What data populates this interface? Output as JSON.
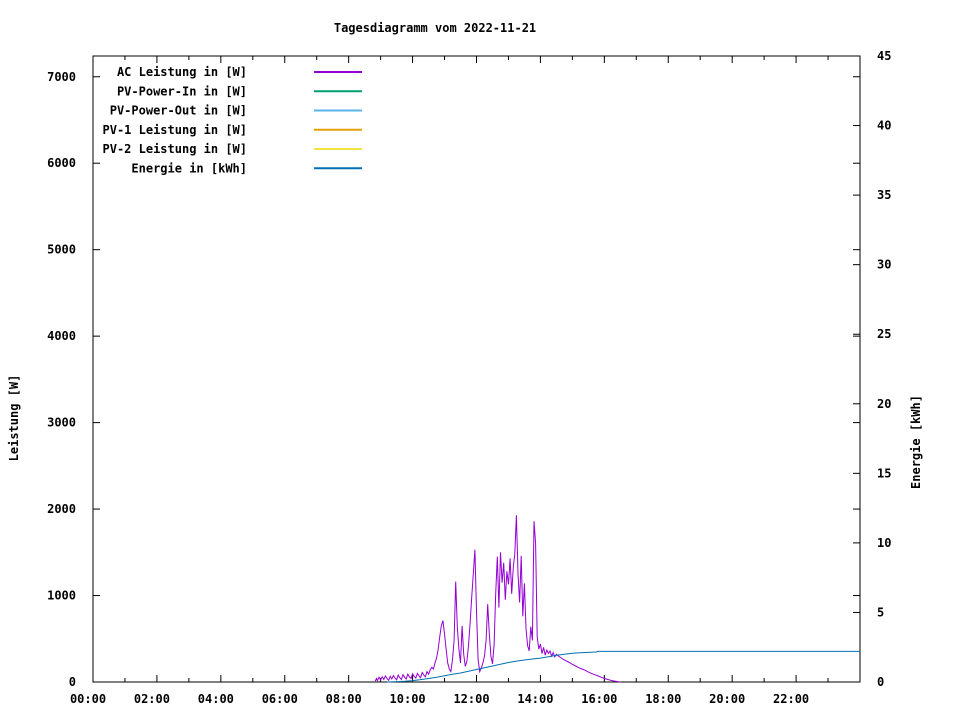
{
  "chart_data": {
    "type": "line",
    "title": "Tagesdiagramm vom 2022-11-21",
    "background": "#ffffff",
    "axis_color": "#000000",
    "legend_position": "top-left",
    "grid": false,
    "x": {
      "range_hours": [
        0,
        24
      ],
      "major_ticks": [
        {
          "h": 0,
          "label": "00:00"
        },
        {
          "h": 2,
          "label": "02:00"
        },
        {
          "h": 4,
          "label": "04:00"
        },
        {
          "h": 6,
          "label": "06:00"
        },
        {
          "h": 8,
          "label": "08:00"
        },
        {
          "h": 10,
          "label": "10:00"
        },
        {
          "h": 12,
          "label": "12:00"
        },
        {
          "h": 14,
          "label": "14:00"
        },
        {
          "h": 16,
          "label": "16:00"
        },
        {
          "h": 18,
          "label": "18:00"
        },
        {
          "h": 20,
          "label": "20:00"
        },
        {
          "h": 22,
          "label": "22:00"
        }
      ],
      "minor_tick_hours": [
        1,
        3,
        5,
        7,
        9,
        11,
        13,
        15,
        17,
        19,
        21,
        23
      ]
    },
    "y_left": {
      "label": "Leistung [W]",
      "max": 7240,
      "ticks": [
        {
          "v": 0,
          "label": "0"
        },
        {
          "v": 1000,
          "label": "1000"
        },
        {
          "v": 2000,
          "label": "2000"
        },
        {
          "v": 3000,
          "label": "3000"
        },
        {
          "v": 4000,
          "label": "4000"
        },
        {
          "v": 5000,
          "label": "5000"
        },
        {
          "v": 6000,
          "label": "6000"
        },
        {
          "v": 7000,
          "label": "7000"
        }
      ]
    },
    "y_right": {
      "label": "Energie [kWh]",
      "max": 45,
      "ticks": [
        {
          "v": 0,
          "label": "0"
        },
        {
          "v": 5,
          "label": "5"
        },
        {
          "v": 10,
          "label": "10"
        },
        {
          "v": 15,
          "label": "15"
        },
        {
          "v": 20,
          "label": "20"
        },
        {
          "v": 25,
          "label": "25"
        },
        {
          "v": 30,
          "label": "30"
        },
        {
          "v": 35,
          "label": "35"
        },
        {
          "v": 40,
          "label": "40"
        },
        {
          "v": 45,
          "label": "45"
        }
      ]
    },
    "series": [
      {
        "name": "AC Leistung in [W]",
        "color": "#9400d3",
        "axis": "left",
        "visible": true,
        "points": [
          [
            8.83,
            10
          ],
          [
            8.87,
            40
          ],
          [
            8.9,
            15
          ],
          [
            8.95,
            55
          ],
          [
            9.0,
            25
          ],
          [
            9.05,
            60
          ],
          [
            9.1,
            30
          ],
          [
            9.15,
            70
          ],
          [
            9.2,
            40
          ],
          [
            9.25,
            20
          ],
          [
            9.3,
            65
          ],
          [
            9.35,
            35
          ],
          [
            9.4,
            75
          ],
          [
            9.45,
            45
          ],
          [
            9.5,
            25
          ],
          [
            9.55,
            80
          ],
          [
            9.6,
            50
          ],
          [
            9.65,
            30
          ],
          [
            9.7,
            85
          ],
          [
            9.75,
            55
          ],
          [
            9.8,
            35
          ],
          [
            9.85,
            90
          ],
          [
            9.9,
            60
          ],
          [
            9.95,
            40
          ],
          [
            10.0,
            95
          ],
          [
            10.05,
            65
          ],
          [
            10.1,
            45
          ],
          [
            10.15,
            100
          ],
          [
            10.2,
            70
          ],
          [
            10.25,
            50
          ],
          [
            10.3,
            110
          ],
          [
            10.35,
            80
          ],
          [
            10.4,
            60
          ],
          [
            10.45,
            120
          ],
          [
            10.5,
            90
          ],
          [
            10.55,
            140
          ],
          [
            10.6,
            170
          ],
          [
            10.65,
            150
          ],
          [
            10.7,
            220
          ],
          [
            10.75,
            280
          ],
          [
            10.8,
            380
          ],
          [
            10.85,
            520
          ],
          [
            10.9,
            650
          ],
          [
            10.95,
            710
          ],
          [
            11.0,
            560
          ],
          [
            11.05,
            380
          ],
          [
            11.1,
            220
          ],
          [
            11.15,
            150
          ],
          [
            11.2,
            120
          ],
          [
            11.25,
            260
          ],
          [
            11.3,
            480
          ],
          [
            11.35,
            1160
          ],
          [
            11.4,
            640
          ],
          [
            11.45,
            380
          ],
          [
            11.5,
            220
          ],
          [
            11.55,
            650
          ],
          [
            11.6,
            320
          ],
          [
            11.65,
            180
          ],
          [
            11.7,
            240
          ],
          [
            11.75,
            420
          ],
          [
            11.8,
            680
          ],
          [
            11.85,
            980
          ],
          [
            11.9,
            1250
          ],
          [
            11.95,
            1530
          ],
          [
            12.0,
            820
          ],
          [
            12.05,
            260
          ],
          [
            12.1,
            120
          ],
          [
            12.15,
            160
          ],
          [
            12.2,
            220
          ],
          [
            12.25,
            300
          ],
          [
            12.3,
            480
          ],
          [
            12.35,
            900
          ],
          [
            12.4,
            560
          ],
          [
            12.45,
            300
          ],
          [
            12.5,
            210
          ],
          [
            12.55,
            430
          ],
          [
            12.6,
            1020
          ],
          [
            12.65,
            1450
          ],
          [
            12.7,
            860
          ],
          [
            12.75,
            1500
          ],
          [
            12.8,
            1150
          ],
          [
            12.85,
            1380
          ],
          [
            12.9,
            950
          ],
          [
            12.95,
            1280
          ],
          [
            13.0,
            1130
          ],
          [
            13.05,
            1430
          ],
          [
            13.1,
            1020
          ],
          [
            13.15,
            1330
          ],
          [
            13.2,
            1480
          ],
          [
            13.25,
            1930
          ],
          [
            13.3,
            1250
          ],
          [
            13.35,
            920
          ],
          [
            13.4,
            1460
          ],
          [
            13.45,
            760
          ],
          [
            13.5,
            1140
          ],
          [
            13.55,
            620
          ],
          [
            13.6,
            420
          ],
          [
            13.65,
            360
          ],
          [
            13.7,
            640
          ],
          [
            13.75,
            480
          ],
          [
            13.8,
            1860
          ],
          [
            13.85,
            1600
          ],
          [
            13.9,
            520
          ],
          [
            13.95,
            380
          ],
          [
            14.0,
            440
          ],
          [
            14.05,
            330
          ],
          [
            14.1,
            400
          ],
          [
            14.15,
            310
          ],
          [
            14.2,
            370
          ],
          [
            14.25,
            330
          ],
          [
            14.3,
            360
          ],
          [
            14.35,
            300
          ],
          [
            14.4,
            340
          ],
          [
            14.45,
            290
          ],
          [
            14.5,
            320
          ],
          [
            14.6,
            290
          ],
          [
            14.7,
            265
          ],
          [
            14.8,
            245
          ],
          [
            14.9,
            225
          ],
          [
            15.0,
            205
          ],
          [
            15.1,
            185
          ],
          [
            15.2,
            165
          ],
          [
            15.3,
            150
          ],
          [
            15.4,
            135
          ],
          [
            15.5,
            115
          ],
          [
            15.6,
            100
          ],
          [
            15.7,
            85
          ],
          [
            15.8,
            70
          ],
          [
            15.9,
            55
          ],
          [
            16.0,
            40
          ],
          [
            16.1,
            30
          ],
          [
            16.2,
            20
          ],
          [
            16.3,
            12
          ],
          [
            16.4,
            6
          ],
          [
            16.5,
            0
          ]
        ]
      },
      {
        "name": "PV-Power-In in [W]",
        "color": "#009e73",
        "axis": "left",
        "visible": false,
        "points": []
      },
      {
        "name": "PV-Power-Out in [W]",
        "color": "#56b4e9",
        "axis": "left",
        "visible": false,
        "points": []
      },
      {
        "name": "PV-1 Leistung in [W]",
        "color": "#e69f00",
        "axis": "left",
        "visible": false,
        "points": []
      },
      {
        "name": "PV-2 Leistung in [W]",
        "color": "#f0e442",
        "axis": "left",
        "visible": false,
        "points": []
      },
      {
        "name": "Energie in [kWh]",
        "color": "#0072b2",
        "axis": "right",
        "visible": true,
        "points": [
          [
            9.2,
            0.0
          ],
          [
            9.5,
            0.03
          ],
          [
            9.75,
            0.06
          ],
          [
            10.0,
            0.1
          ],
          [
            10.25,
            0.17
          ],
          [
            10.5,
            0.25
          ],
          [
            10.75,
            0.34
          ],
          [
            11.0,
            0.45
          ],
          [
            11.25,
            0.55
          ],
          [
            11.5,
            0.65
          ],
          [
            11.75,
            0.77
          ],
          [
            12.0,
            0.9
          ],
          [
            12.25,
            1.02
          ],
          [
            12.5,
            1.15
          ],
          [
            12.75,
            1.28
          ],
          [
            13.0,
            1.4
          ],
          [
            13.25,
            1.5
          ],
          [
            13.5,
            1.58
          ],
          [
            13.75,
            1.65
          ],
          [
            14.0,
            1.72
          ],
          [
            14.25,
            1.82
          ],
          [
            14.5,
            1.92
          ],
          [
            14.75,
            2.0
          ],
          [
            15.0,
            2.06
          ],
          [
            15.25,
            2.1
          ],
          [
            15.5,
            2.13
          ],
          [
            15.75,
            2.16
          ],
          [
            15.8,
            2.2
          ],
          [
            16.5,
            2.2
          ],
          [
            24.0,
            2.2
          ]
        ]
      }
    ]
  }
}
